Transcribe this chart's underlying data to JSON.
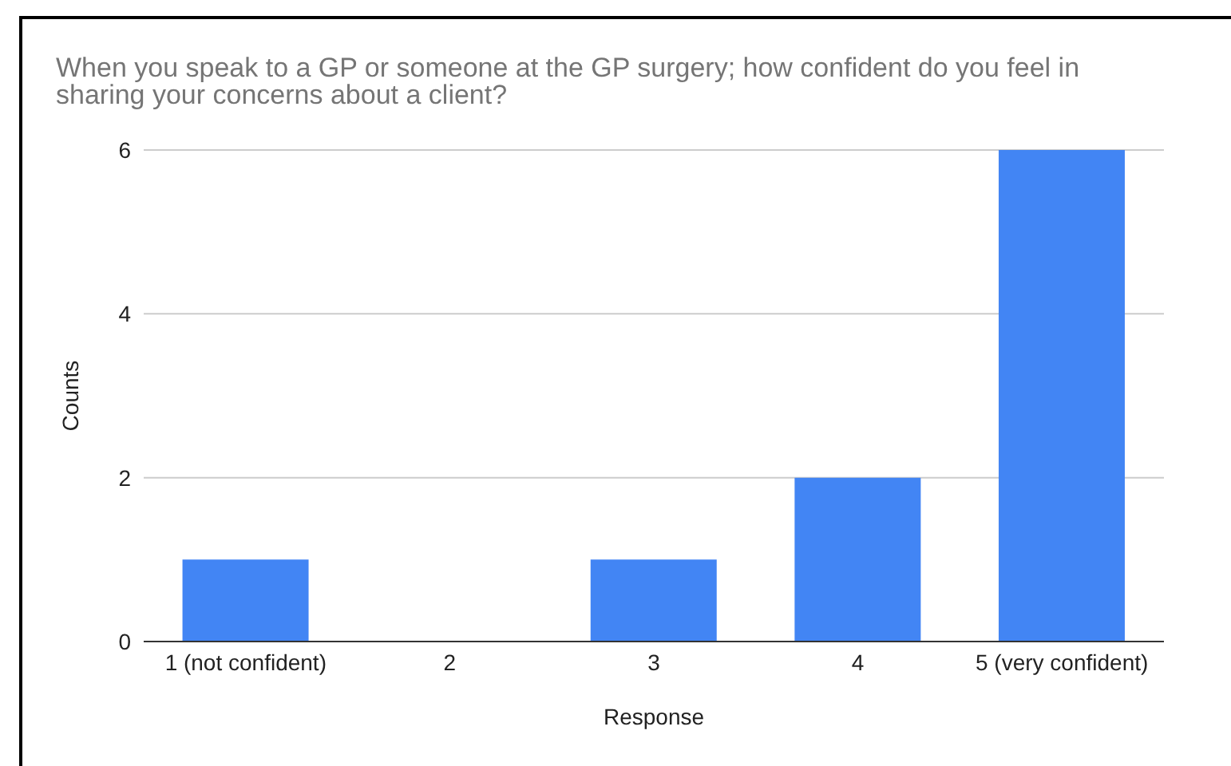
{
  "chart_data": {
    "type": "bar",
    "title": "When you speak to a GP or someone at the GP surgery; how confident do you feel in sharing your concerns about a client?",
    "xlabel": "Response",
    "ylabel": "Counts",
    "categories": [
      "1 (not confident)",
      "2",
      "3",
      "4",
      "5 (very confident)"
    ],
    "values": [
      1,
      0,
      1,
      2,
      6
    ],
    "color": "#4285f4",
    "ylim": [
      0,
      6
    ],
    "yticks": [
      0,
      2,
      4,
      6
    ],
    "grid": "y"
  }
}
